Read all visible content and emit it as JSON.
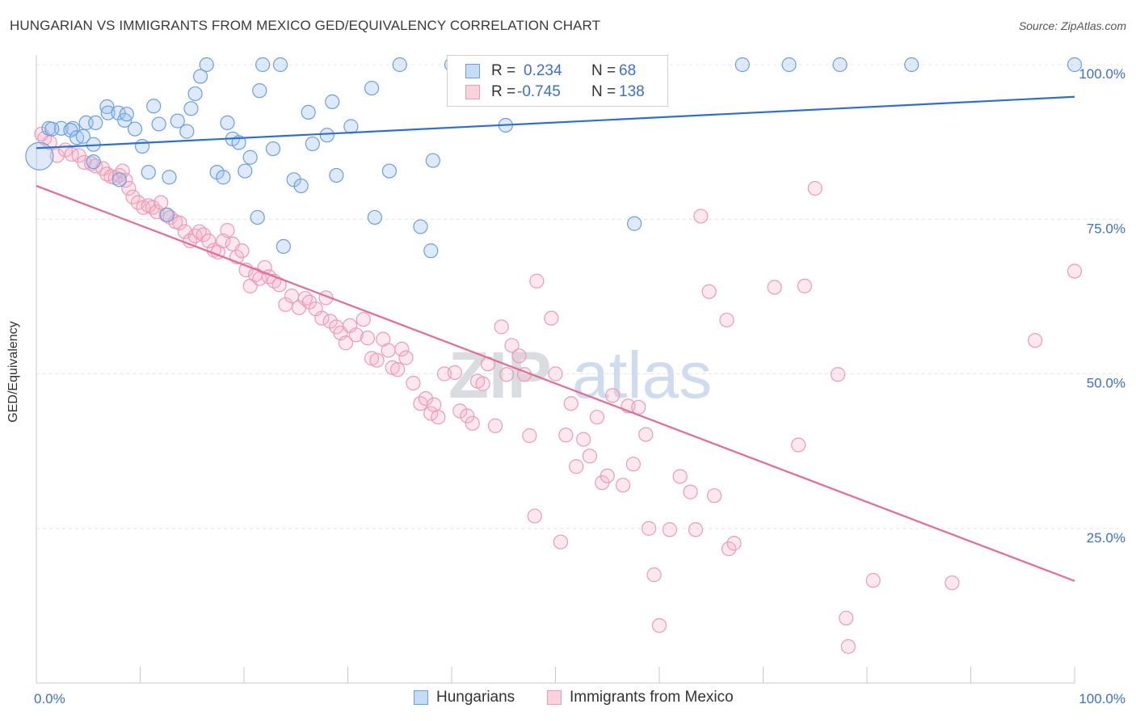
{
  "title": "HUNGARIAN VS IMMIGRANTS FROM MEXICO GED/EQUIVALENCY CORRELATION CHART",
  "source": "Source: ZipAtlas.com",
  "watermark": {
    "zip": "ZIP",
    "atlas": "atlas"
  },
  "colors": {
    "blue": "#6a9fe0",
    "blue_fill": "rgba(160,196,240,0.35)",
    "blue_line": "#2f6fcd",
    "pink": "#ee9ab5",
    "pink_fill": "rgba(245,180,200,0.30)",
    "pink_line": "#e56b96",
    "axis_text": "#3b6fd4",
    "grid": "#e4e4e4"
  },
  "legend": {
    "r_label": "R =",
    "n_label": "N =",
    "rows": [
      {
        "r": "0.234",
        "n": "68"
      },
      {
        "r": "-0.745",
        "n": "138"
      }
    ]
  },
  "series_names": [
    "Hungarians",
    "Immigrants from Mexico"
  ],
  "chart_data": {
    "type": "scatter",
    "title": "HUNGARIAN VS IMMIGRANTS FROM MEXICO GED/EQUIVALENCY CORRELATION CHART",
    "xlabel": "",
    "ylabel": "GED/Equivalency",
    "xlim": [
      0,
      100
    ],
    "ylim": [
      0,
      100
    ],
    "x_tick_labels": [
      "0.0%",
      "100.0%"
    ],
    "y_tick_values": [
      25,
      50,
      75,
      100
    ],
    "y_tick_labels": [
      "25.0%",
      "50.0%",
      "75.0%",
      "100.0%"
    ],
    "grid": true,
    "legend_position": "top-center",
    "series": [
      {
        "name": "Hungarians",
        "r": 0.234,
        "n": 68,
        "trend": {
          "x": [
            0,
            100
          ],
          "y": [
            86.5,
            94.8
          ]
        },
        "points": [
          [
            1.2,
            89.7
          ],
          [
            2.4,
            89.7
          ],
          [
            1.5,
            89.6
          ],
          [
            3.5,
            89.7
          ],
          [
            3.3,
            89.4
          ],
          [
            3.9,
            88.2
          ],
          [
            4.5,
            88.4
          ],
          [
            4.8,
            90.6
          ],
          [
            5.7,
            90.6
          ],
          [
            5.5,
            87.1
          ],
          [
            5.5,
            84.3
          ],
          [
            6.8,
            93.2
          ],
          [
            6.9,
            92.2
          ],
          [
            7.9,
            92.2
          ],
          [
            8.5,
            91.0
          ],
          [
            8.7,
            92.0
          ],
          [
            9.5,
            89.6
          ],
          [
            8.0,
            81.4
          ],
          [
            10.2,
            86.8
          ],
          [
            10.8,
            82.6
          ],
          [
            11.3,
            93.3
          ],
          [
            11.8,
            90.4
          ],
          [
            12.6,
            75.7
          ],
          [
            12.8,
            81.8
          ],
          [
            13.6,
            90.9
          ],
          [
            14.5,
            89.2
          ],
          [
            14.9,
            92.9
          ],
          [
            15.3,
            95.3
          ],
          [
            15.8,
            98.1
          ],
          [
            16.4,
            100
          ],
          [
            17.4,
            82.6
          ],
          [
            18.0,
            81.8
          ],
          [
            18.4,
            90.6
          ],
          [
            18.9,
            88.0
          ],
          [
            19.5,
            87.4
          ],
          [
            20.1,
            82.8
          ],
          [
            20.6,
            85.0
          ],
          [
            21.3,
            75.3
          ],
          [
            21.5,
            95.8
          ],
          [
            21.8,
            100
          ],
          [
            22.8,
            86.4
          ],
          [
            23.5,
            100
          ],
          [
            23.8,
            70.6
          ],
          [
            24.8,
            81.4
          ],
          [
            25.5,
            80.4
          ],
          [
            26.2,
            92.3
          ],
          [
            26.6,
            87.2
          ],
          [
            28.0,
            88.6
          ],
          [
            28.5,
            94.0
          ],
          [
            28.9,
            82.1
          ],
          [
            30.3,
            90.0
          ],
          [
            32.3,
            96.2
          ],
          [
            32.6,
            75.3
          ],
          [
            34.0,
            82.8
          ],
          [
            35.0,
            100
          ],
          [
            37.0,
            73.8
          ],
          [
            38.0,
            69.9
          ],
          [
            38.2,
            84.5
          ],
          [
            40.0,
            100
          ],
          [
            44.3,
            100
          ],
          [
            45.2,
            90.2
          ],
          [
            52.4,
            100
          ],
          [
            57.6,
            74.3
          ],
          [
            68.0,
            100
          ],
          [
            72.5,
            100
          ],
          [
            77.4,
            100
          ],
          [
            84.3,
            100
          ],
          [
            100,
            100
          ]
        ],
        "big_point": [
          0.3,
          85.2
        ]
      },
      {
        "name": "Immigrants from Mexico",
        "r": -0.745,
        "n": 138,
        "trend": {
          "x": [
            0,
            100
          ],
          "y": [
            80.4,
            16.5
          ]
        },
        "points": [
          [
            0.5,
            88.8
          ],
          [
            0.8,
            88.1
          ],
          [
            1.3,
            87.4
          ],
          [
            2.0,
            85.3
          ],
          [
            2.8,
            86.2
          ],
          [
            3.4,
            85.5
          ],
          [
            4.1,
            85.3
          ],
          [
            4.6,
            84.2
          ],
          [
            5.3,
            84.0
          ],
          [
            5.7,
            83.6
          ],
          [
            6.4,
            83.2
          ],
          [
            6.8,
            82.3
          ],
          [
            7.2,
            81.9
          ],
          [
            7.6,
            81.7
          ],
          [
            8.0,
            82.1
          ],
          [
            8.3,
            82.8
          ],
          [
            8.6,
            81.3
          ],
          [
            8.9,
            80.0
          ],
          [
            9.3,
            78.6
          ],
          [
            9.8,
            77.7
          ],
          [
            10.3,
            76.9
          ],
          [
            10.8,
            77.2
          ],
          [
            11.2,
            76.9
          ],
          [
            11.6,
            76.2
          ],
          [
            12.0,
            77.7
          ],
          [
            12.5,
            75.7
          ],
          [
            12.9,
            75.3
          ],
          [
            13.4,
            74.6
          ],
          [
            13.8,
            74.4
          ],
          [
            14.3,
            73.0
          ],
          [
            14.8,
            71.5
          ],
          [
            15.3,
            72.3
          ],
          [
            15.7,
            73.0
          ],
          [
            16.1,
            72.5
          ],
          [
            16.6,
            71.5
          ],
          [
            17.1,
            70.0
          ],
          [
            17.5,
            69.7
          ],
          [
            18.0,
            71.5
          ],
          [
            18.4,
            73.2
          ],
          [
            18.9,
            71.0
          ],
          [
            19.3,
            68.9
          ],
          [
            19.8,
            69.9
          ],
          [
            20.2,
            66.8
          ],
          [
            20.6,
            64.2
          ],
          [
            21.1,
            66.0
          ],
          [
            21.5,
            65.4
          ],
          [
            22.0,
            67.2
          ],
          [
            22.4,
            65.7
          ],
          [
            22.9,
            65.0
          ],
          [
            23.4,
            64.4
          ],
          [
            24.0,
            61.2
          ],
          [
            24.6,
            62.6
          ],
          [
            25.3,
            60.7
          ],
          [
            25.9,
            62.2
          ],
          [
            26.3,
            61.6
          ],
          [
            26.9,
            60.5
          ],
          [
            27.5,
            59.0
          ],
          [
            27.9,
            62.3
          ],
          [
            28.3,
            58.5
          ],
          [
            28.9,
            57.6
          ],
          [
            29.3,
            56.6
          ],
          [
            29.8,
            55.0
          ],
          [
            30.2,
            57.8
          ],
          [
            30.8,
            56.3
          ],
          [
            31.5,
            58.8
          ],
          [
            31.9,
            55.8
          ],
          [
            32.3,
            52.5
          ],
          [
            32.8,
            52.2
          ],
          [
            33.4,
            55.6
          ],
          [
            33.9,
            53.8
          ],
          [
            34.3,
            51.0
          ],
          [
            34.8,
            50.7
          ],
          [
            35.2,
            54.0
          ],
          [
            35.6,
            52.6
          ],
          [
            36.3,
            48.5
          ],
          [
            37.0,
            45.2
          ],
          [
            37.5,
            46.0
          ],
          [
            38.0,
            43.6
          ],
          [
            38.3,
            45.0
          ],
          [
            38.7,
            43.0
          ],
          [
            39.3,
            50.0
          ],
          [
            40.3,
            50.2
          ],
          [
            40.8,
            44.0
          ],
          [
            41.5,
            43.2
          ],
          [
            42.0,
            42.0
          ],
          [
            42.5,
            48.8
          ],
          [
            43.0,
            48.4
          ],
          [
            43.5,
            51.6
          ],
          [
            44.2,
            41.6
          ],
          [
            44.8,
            57.6
          ],
          [
            45.3,
            49.9
          ],
          [
            45.8,
            54.6
          ],
          [
            46.5,
            52.9
          ],
          [
            47.0,
            49.9
          ],
          [
            47.5,
            40.0
          ],
          [
            48.0,
            27.0
          ],
          [
            48.2,
            65.0
          ],
          [
            49.6,
            59.0
          ],
          [
            50.0,
            50.0
          ],
          [
            50.5,
            22.8
          ],
          [
            51.0,
            40.1
          ],
          [
            51.5,
            45.2
          ],
          [
            52.0,
            35.0
          ],
          [
            52.7,
            39.4
          ],
          [
            53.3,
            36.7
          ],
          [
            54.0,
            43.0
          ],
          [
            54.5,
            32.4
          ],
          [
            55.0,
            33.5
          ],
          [
            55.5,
            46.5
          ],
          [
            56.5,
            32.0
          ],
          [
            57.0,
            44.8
          ],
          [
            57.5,
            35.4
          ],
          [
            58.0,
            44.6
          ],
          [
            58.7,
            40.2
          ],
          [
            59.0,
            25.0
          ],
          [
            59.5,
            17.5
          ],
          [
            60.0,
            9.3
          ],
          [
            61.0,
            24.8
          ],
          [
            62.0,
            33.4
          ],
          [
            63.0,
            30.9
          ],
          [
            63.5,
            24.8
          ],
          [
            64.0,
            75.5
          ],
          [
            64.8,
            63.3
          ],
          [
            65.3,
            30.3
          ],
          [
            66.5,
            58.7
          ],
          [
            66.7,
            21.7
          ],
          [
            67.2,
            22.6
          ],
          [
            71.1,
            64.0
          ],
          [
            73.4,
            38.5
          ],
          [
            74.0,
            64.2
          ],
          [
            75.0,
            80.0
          ],
          [
            77.2,
            49.9
          ],
          [
            78.0,
            10.5
          ],
          [
            78.2,
            5.9
          ],
          [
            80.6,
            16.6
          ],
          [
            88.2,
            16.2
          ],
          [
            96.2,
            55.4
          ],
          [
            100,
            66.6
          ]
        ]
      }
    ]
  }
}
